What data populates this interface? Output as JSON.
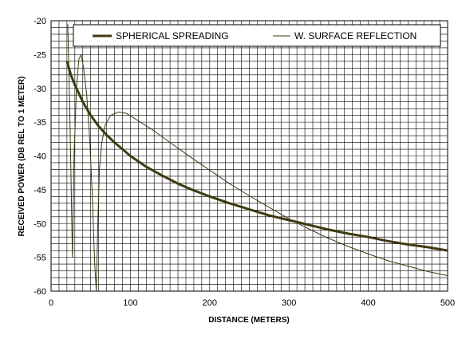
{
  "chart_data": {
    "type": "line",
    "xlabel": "DISTANCE (METERS)",
    "ylabel": "RECEIVED POWER (DB REL TO 1 METER)",
    "xlim": [
      0,
      500
    ],
    "ylim": [
      -60,
      -20
    ],
    "xticks": [
      0,
      100,
      200,
      300,
      400,
      500
    ],
    "yticks": [
      -20,
      -25,
      -30,
      -35,
      -40,
      -45,
      -50,
      -55,
      -60
    ],
    "x_grid_step": 10,
    "y_grid_step": 1,
    "grid": true,
    "legend_position": "top",
    "series": [
      {
        "name": "SPHERICAL SPREADING",
        "color": "#3d3a10",
        "width": "thick",
        "points": [
          [
            20,
            -26
          ],
          [
            25,
            -28
          ],
          [
            30,
            -29.5
          ],
          [
            40,
            -32
          ],
          [
            50,
            -34
          ],
          [
            60,
            -35.6
          ],
          [
            70,
            -36.9
          ],
          [
            80,
            -38
          ],
          [
            90,
            -39
          ],
          [
            100,
            -40
          ],
          [
            120,
            -41.6
          ],
          [
            140,
            -42.9
          ],
          [
            160,
            -44.1
          ],
          [
            180,
            -45.1
          ],
          [
            200,
            -46
          ],
          [
            225,
            -47
          ],
          [
            250,
            -47.9
          ],
          [
            275,
            -48.8
          ],
          [
            300,
            -49.5
          ],
          [
            325,
            -50.2
          ],
          [
            350,
            -50.9
          ],
          [
            375,
            -51.5
          ],
          [
            400,
            -52
          ],
          [
            425,
            -52.6
          ],
          [
            450,
            -53.1
          ],
          [
            475,
            -53.5
          ],
          [
            500,
            -54
          ]
        ]
      },
      {
        "name": "W. SURFACE REFLECTION",
        "color": "#3d3a10",
        "width": "thin",
        "points": [
          [
            21,
            -20.5
          ],
          [
            23,
            -30
          ],
          [
            25,
            -42
          ],
          [
            27,
            -55
          ],
          [
            29,
            -40
          ],
          [
            32,
            -30
          ],
          [
            35,
            -25.7
          ],
          [
            38,
            -25
          ],
          [
            41,
            -27
          ],
          [
            45,
            -31
          ],
          [
            49,
            -38
          ],
          [
            52,
            -46
          ],
          [
            55,
            -56
          ],
          [
            57,
            -60
          ],
          [
            59,
            -50
          ],
          [
            61,
            -42
          ],
          [
            64,
            -38
          ],
          [
            68,
            -35.5
          ],
          [
            75,
            -34
          ],
          [
            85,
            -33.5
          ],
          [
            95,
            -33.7
          ],
          [
            110,
            -34.8
          ],
          [
            130,
            -36.3
          ],
          [
            150,
            -38
          ],
          [
            175,
            -40.1
          ],
          [
            200,
            -42.1
          ],
          [
            225,
            -44.1
          ],
          [
            250,
            -45.9
          ],
          [
            275,
            -47.6
          ],
          [
            300,
            -49.3
          ],
          [
            325,
            -50.8
          ],
          [
            350,
            -52.2
          ],
          [
            375,
            -53.4
          ],
          [
            400,
            -54.5
          ],
          [
            425,
            -55.5
          ],
          [
            450,
            -56.3
          ],
          [
            475,
            -57.1
          ],
          [
            500,
            -57.7
          ]
        ]
      }
    ]
  }
}
